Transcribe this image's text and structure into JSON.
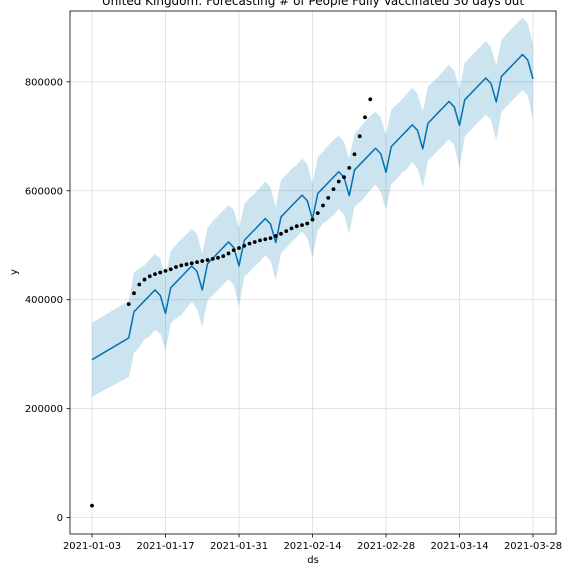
{
  "chart_data": {
    "type": "line",
    "title": "United Kingdom: Forecasting # of People Fully Vaccinated 30 days out",
    "xlabel": "ds",
    "ylabel": "y",
    "x_axis_type": "date",
    "xlim": [
      "2021-01-03",
      "2021-03-28"
    ],
    "ylim": [
      -30000,
      930000
    ],
    "x_ticks": [
      "2021-01-03",
      "2021-01-17",
      "2021-01-31",
      "2021-02-14",
      "2021-02-28",
      "2021-03-14",
      "2021-03-28"
    ],
    "y_ticks": [
      0,
      200000,
      400000,
      600000,
      800000
    ],
    "grid": true,
    "colors": {
      "forecast": "#0072B2",
      "interval": "#0072B2",
      "observed": "#000000"
    },
    "series": [
      {
        "role": "forecast",
        "x": [
          "2021-01-03",
          "2021-01-10",
          "2021-01-11",
          "2021-01-12",
          "2021-01-13",
          "2021-01-14",
          "2021-01-15",
          "2021-01-16",
          "2021-01-17",
          "2021-01-18",
          "2021-01-19",
          "2021-01-20",
          "2021-01-21",
          "2021-01-22",
          "2021-01-23",
          "2021-01-24",
          "2021-01-25",
          "2021-01-26",
          "2021-01-27",
          "2021-01-28",
          "2021-01-29",
          "2021-01-30",
          "2021-01-31",
          "2021-02-01",
          "2021-02-02",
          "2021-02-03",
          "2021-02-04",
          "2021-02-05",
          "2021-02-06",
          "2021-02-07",
          "2021-02-08",
          "2021-02-09",
          "2021-02-10",
          "2021-02-11",
          "2021-02-12",
          "2021-02-13",
          "2021-02-14",
          "2021-02-15",
          "2021-02-16",
          "2021-02-17",
          "2021-02-18",
          "2021-02-19",
          "2021-02-20",
          "2021-02-21",
          "2021-02-22",
          "2021-02-23",
          "2021-02-24",
          "2021-02-25",
          "2021-02-26",
          "2021-02-27",
          "2021-02-28",
          "2021-03-01",
          "2021-03-02",
          "2021-03-03",
          "2021-03-04",
          "2021-03-05",
          "2021-03-06",
          "2021-03-07",
          "2021-03-08",
          "2021-03-09",
          "2021-03-10",
          "2021-03-11",
          "2021-03-12",
          "2021-03-13",
          "2021-03-14",
          "2021-03-15",
          "2021-03-16",
          "2021-03-17",
          "2021-03-18",
          "2021-03-19",
          "2021-03-20",
          "2021-03-21",
          "2021-03-22",
          "2021-03-23",
          "2021-03-24",
          "2021-03-25",
          "2021-03-26",
          "2021-03-27",
          "2021-03-28"
        ],
        "yhat": [
          290000,
          330000,
          378000,
          388000,
          398000,
          408000,
          418000,
          408000,
          375000,
          422000,
          432000,
          442000,
          452000,
          462000,
          452000,
          418000,
          466000,
          476000,
          486000,
          496000,
          506000,
          496000,
          462000,
          509000,
          519000,
          529000,
          539000,
          549000,
          539000,
          505000,
          552000,
          562000,
          572000,
          582000,
          592000,
          582000,
          548000,
          595000,
          605000,
          615000,
          625000,
          635000,
          625000,
          591000,
          638000,
          648000,
          658000,
          668000,
          678000,
          668000,
          634000,
          681000,
          691000,
          701000,
          711000,
          721000,
          711000,
          677000,
          724000,
          734000,
          744000,
          754000,
          764000,
          754000,
          720000,
          767000,
          777000,
          787000,
          797000,
          807000,
          797000,
          763000,
          810000,
          820000,
          830000,
          840000,
          850000,
          840000,
          805000
        ],
        "yhat_lower": [
          222000,
          258000,
          302000,
          313000,
          327000,
          333000,
          345000,
          338000,
          306000,
          356000,
          366000,
          372000,
          384000,
          396000,
          383000,
          350000,
          399000,
          408000,
          418000,
          428000,
          438000,
          427000,
          387000,
          442000,
          451000,
          462000,
          470000,
          482000,
          471000,
          436000,
          486000,
          495000,
          506000,
          515000,
          525000,
          513000,
          477000,
          527000,
          540000,
          547000,
          555000,
          567000,
          556000,
          521000,
          571000,
          579000,
          589000,
          601000,
          611000,
          598000,
          565000,
          612000,
          621000,
          633000,
          640000,
          653000,
          641000,
          606000,
          655000,
          665000,
          675000,
          684000,
          695000,
          683000,
          640000,
          700000,
          710000,
          720000,
          730000,
          740000,
          730000,
          692000,
          745000,
          755000,
          765000,
          775000,
          785000,
          775000,
          730000
        ],
        "yhat_upper": [
          358000,
          398000,
          450000,
          458000,
          463000,
          474000,
          484000,
          476000,
          443000,
          490000,
          501000,
          511000,
          520000,
          530000,
          521000,
          484000,
          532000,
          544000,
          554000,
          564000,
          573000,
          565000,
          531000,
          575000,
          587000,
          595000,
          606000,
          617000,
          607000,
          570000,
          620000,
          629000,
          640000,
          648000,
          659000,
          649000,
          613000,
          661000,
          672000,
          683000,
          693000,
          701000,
          690000,
          658000,
          705000,
          715000,
          727000,
          737000,
          745000,
          735000,
          702000,
          749000,
          758000,
          767000,
          778000,
          789000,
          778000,
          745000,
          792000,
          800000,
          810000,
          821000,
          831000,
          820000,
          787000,
          834000,
          845000,
          855000,
          864000,
          875000,
          864000,
          830000,
          877000,
          888000,
          898000,
          908000,
          918000,
          907000,
          870000
        ]
      },
      {
        "role": "observed",
        "x": [
          "2021-01-03",
          "2021-01-10",
          "2021-01-11",
          "2021-01-12",
          "2021-01-13",
          "2021-01-14",
          "2021-01-15",
          "2021-01-16",
          "2021-01-17",
          "2021-01-18",
          "2021-01-19",
          "2021-01-20",
          "2021-01-21",
          "2021-01-22",
          "2021-01-23",
          "2021-01-24",
          "2021-01-25",
          "2021-01-26",
          "2021-01-27",
          "2021-01-28",
          "2021-01-29",
          "2021-01-30",
          "2021-01-31",
          "2021-02-01",
          "2021-02-02",
          "2021-02-03",
          "2021-02-04",
          "2021-02-05",
          "2021-02-06",
          "2021-02-07",
          "2021-02-08",
          "2021-02-09",
          "2021-02-10",
          "2021-02-11",
          "2021-02-12",
          "2021-02-13",
          "2021-02-14",
          "2021-02-15",
          "2021-02-16",
          "2021-02-17",
          "2021-02-18",
          "2021-02-19",
          "2021-02-20",
          "2021-02-21",
          "2021-02-22",
          "2021-02-23",
          "2021-02-24",
          "2021-02-25"
        ],
        "y": [
          22000,
          392000,
          412000,
          428000,
          437000,
          443000,
          447000,
          450000,
          453000,
          456000,
          460000,
          463000,
          465000,
          467000,
          469000,
          471000,
          473000,
          475000,
          477000,
          480000,
          485000,
          491000,
          495000,
          499000,
          503000,
          506000,
          509000,
          511000,
          513000,
          517000,
          521000,
          526000,
          531000,
          535000,
          537000,
          540000,
          547000,
          559000,
          573000,
          587000,
          603000,
          617000,
          625000,
          642000,
          667000,
          700000,
          735000,
          768000
        ]
      }
    ]
  }
}
